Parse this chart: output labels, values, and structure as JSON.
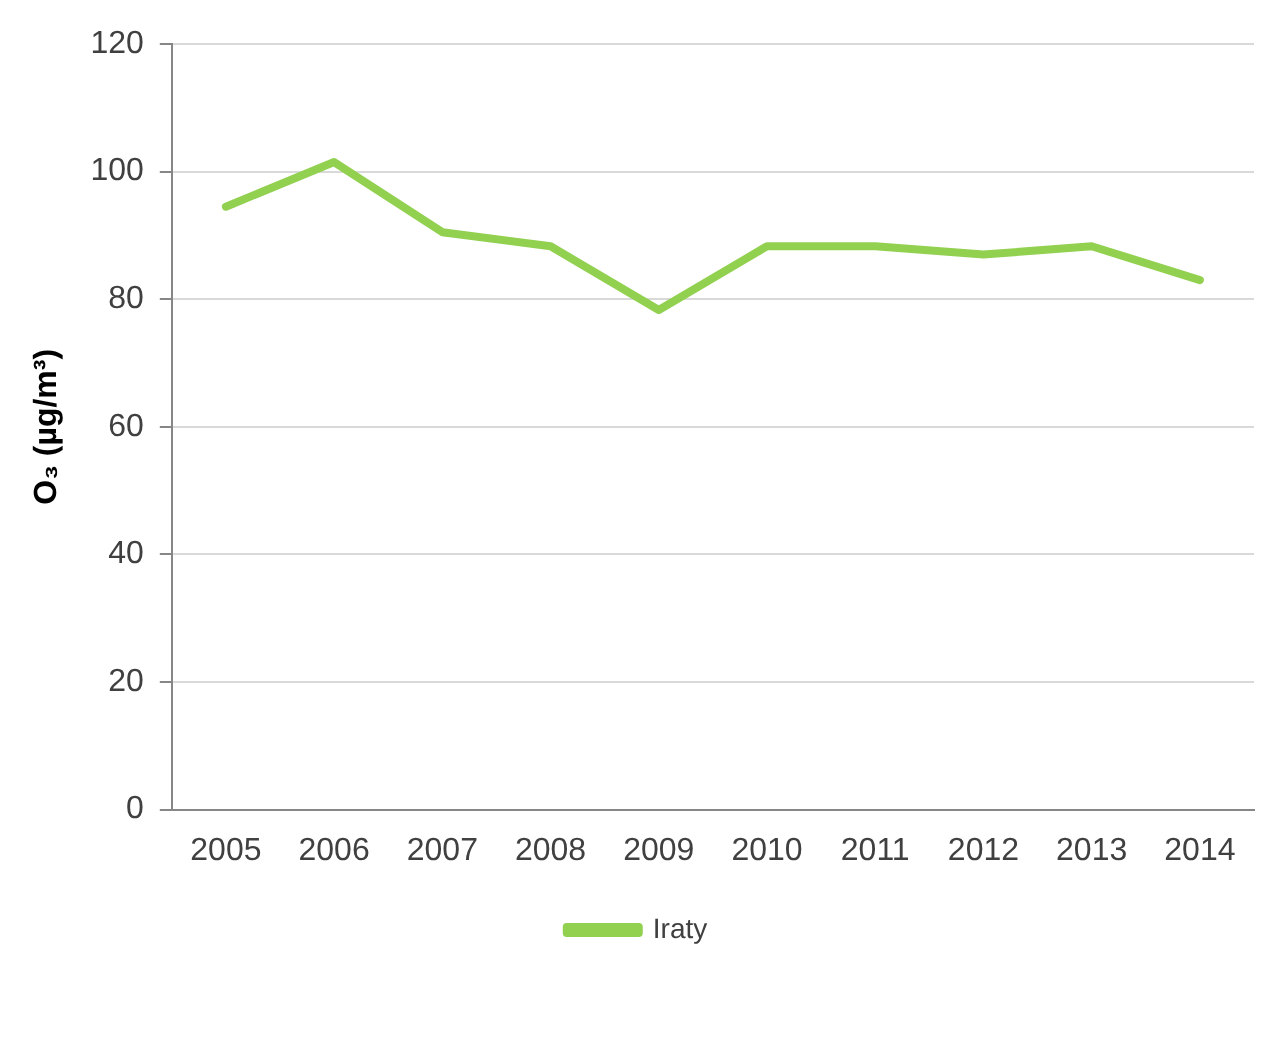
{
  "chart_data": {
    "type": "line",
    "ylabel": "O₃ (µg/m³)",
    "categories": [
      "2005",
      "2006",
      "2007",
      "2008",
      "2009",
      "2010",
      "2011",
      "2012",
      "2013",
      "2014"
    ],
    "series": [
      {
        "name": "Iraty",
        "color": "#92d050",
        "values": [
          94.5,
          101.5,
          90.5,
          88.3,
          78.3,
          88.3,
          88.3,
          87,
          88.3,
          83
        ]
      }
    ],
    "ylim": [
      0,
      120
    ],
    "yticks": [
      0,
      20,
      40,
      60,
      80,
      100,
      120
    ],
    "grid": "y",
    "legend": "bottom",
    "marker": "none"
  }
}
